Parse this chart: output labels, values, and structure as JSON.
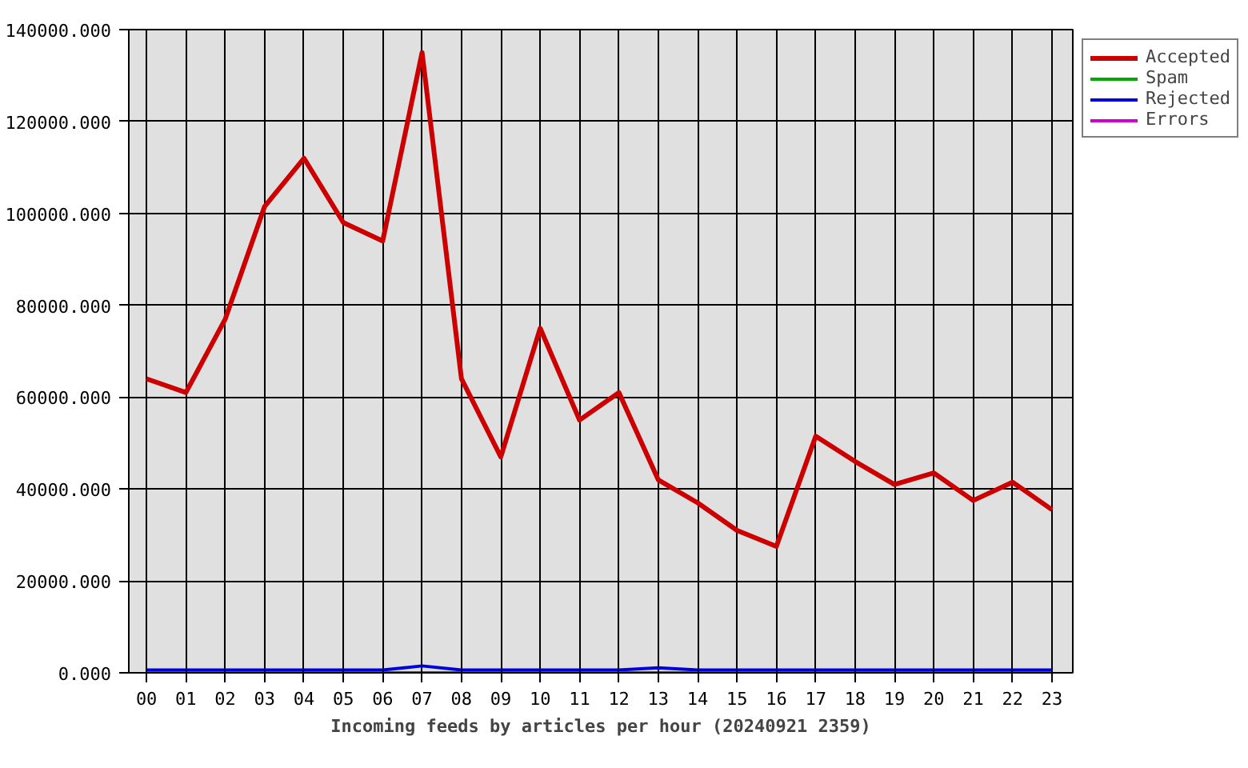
{
  "chart_data": {
    "type": "line",
    "xlabel": "Incoming feeds by articles per hour (20240921 2359)",
    "categories": [
      "00",
      "01",
      "02",
      "03",
      "04",
      "05",
      "06",
      "07",
      "08",
      "09",
      "10",
      "11",
      "12",
      "13",
      "14",
      "15",
      "16",
      "17",
      "18",
      "19",
      "20",
      "21",
      "22",
      "23"
    ],
    "series": [
      {
        "name": "Accepted",
        "color": "#cc0000",
        "values": [
          64000,
          61000,
          77000,
          101500,
          112000,
          98000,
          94000,
          135000,
          64000,
          47000,
          75000,
          55000,
          61000,
          42000,
          37000,
          31000,
          27500,
          51500,
          46000,
          41000,
          43500,
          37500,
          41500,
          35500
        ]
      },
      {
        "name": "Spam",
        "color": "#00aa00",
        "values": [
          null,
          null,
          null,
          null,
          null,
          null,
          null,
          null,
          null,
          null,
          null,
          null,
          null,
          null,
          null,
          null,
          null,
          null,
          null,
          null,
          null,
          null,
          null,
          null
        ]
      },
      {
        "name": "Rejected",
        "color": "#0000dd",
        "values": [
          600,
          600,
          600,
          600,
          600,
          600,
          600,
          1500,
          600,
          600,
          600,
          600,
          600,
          1100,
          600,
          600,
          600,
          600,
          600,
          600,
          600,
          600,
          600,
          600
        ]
      },
      {
        "name": "Errors",
        "color": "#cc00cc",
        "values": [
          0,
          0,
          0,
          0,
          0,
          0,
          0,
          0,
          0,
          0,
          0,
          0,
          0,
          0,
          0,
          0,
          0,
          0,
          0,
          0,
          0,
          0,
          0,
          0
        ]
      }
    ],
    "ylim": [
      0,
      140000
    ],
    "yticks": [
      {
        "value": 0,
        "label": "0.000"
      },
      {
        "value": 20000,
        "label": "20000.000"
      },
      {
        "value": 40000,
        "label": "40000.000"
      },
      {
        "value": 60000,
        "label": "60000.000"
      },
      {
        "value": 80000,
        "label": "80000.000"
      },
      {
        "value": 100000,
        "label": "100000.000"
      },
      {
        "value": 120000,
        "label": "120000.000"
      },
      {
        "value": 140000,
        "label": "140000.000"
      }
    ],
    "grid": true,
    "legend": "top right",
    "line_style": "solid"
  }
}
